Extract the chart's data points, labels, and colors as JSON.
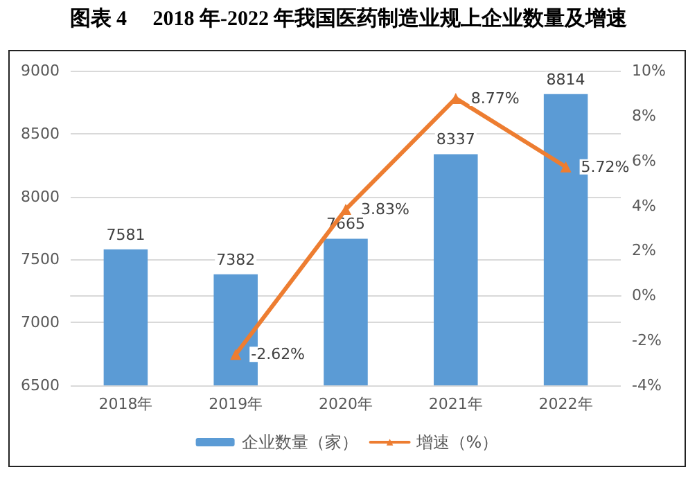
{
  "chart_data": {
    "type": "bar",
    "title": "图表 4　 2018 年-2022 年我国医药制造业规上企业数量及增速",
    "categories": [
      "2018年",
      "2019年",
      "2020年",
      "2021年",
      "2022年"
    ],
    "series": [
      {
        "name": "企业数量（家）",
        "color": "#5b9bd5",
        "values": [
          7581,
          7382,
          7665,
          8337,
          8814
        ],
        "data_labels": true
      },
      {
        "name": "增速（%）",
        "type": "line",
        "axis": "y2",
        "color": "#ed7d31",
        "values": [
          null,
          -2.62,
          3.83,
          8.77,
          5.72
        ],
        "value_labels": [
          null,
          "-2.62%",
          "3.83%",
          "8.77%",
          "5.72%"
        ]
      }
    ],
    "ylim": [
      6500,
      9000
    ],
    "yticks": [
      6500,
      7000,
      7500,
      8000,
      8500,
      9000
    ],
    "y2lim": [
      -4,
      10
    ],
    "y2ticks": [
      {
        "value": -4,
        "label": "-4%"
      },
      {
        "value": -2,
        "label": "-2%"
      },
      {
        "value": 0,
        "label": "0%"
      },
      {
        "value": 2,
        "label": "2%"
      },
      {
        "value": 4,
        "label": "4%"
      },
      {
        "value": 6,
        "label": "6%"
      },
      {
        "value": 8,
        "label": "8%"
      },
      {
        "value": 10,
        "label": "10%"
      }
    ],
    "grid": "y",
    "legend": "bottom",
    "marker": "triangle",
    "line_style": "solid"
  }
}
